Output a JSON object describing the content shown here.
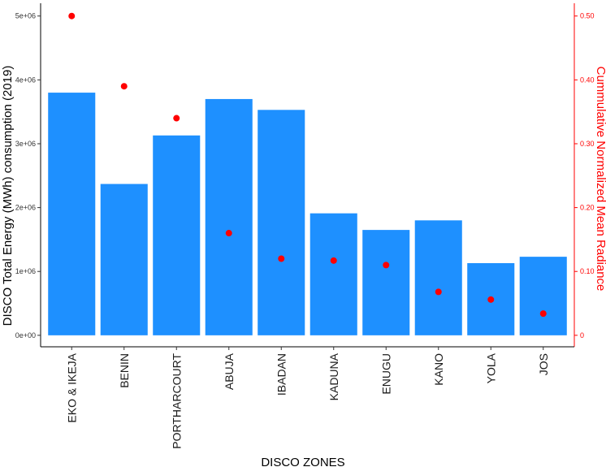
{
  "chart_data": {
    "type": "bar",
    "categories": [
      "EKO & IKEJA",
      "BENIN",
      "PORTHARCOURT",
      "ABUJA",
      "IBADAN",
      "KADUNA",
      "ENUGU",
      "KANO",
      "YOLA",
      "JOS"
    ],
    "series": [
      {
        "type": "bar",
        "axis": "left",
        "color": "#1e90ff",
        "values": [
          3800000,
          2370000,
          3130000,
          3700000,
          3530000,
          1910000,
          1650000,
          1800000,
          1130000,
          1230000
        ]
      },
      {
        "type": "scatter",
        "axis": "right",
        "color": "#ff0000",
        "values": [
          0.5,
          0.39,
          0.34,
          0.16,
          0.12,
          0.117,
          0.11,
          0.068,
          0.056,
          0.034
        ]
      }
    ],
    "xlabel": "DISCO ZONES",
    "ylabel": "DISCO Total Energy (MWh) consumption (2019)",
    "y2label": "Cummulative Normalized Mean Radiance",
    "ylim": [
      -180000,
      5200000
    ],
    "y2lim": [
      -0.018,
      0.52
    ],
    "yticks": [
      "0e+00",
      "1e+06",
      "2e+06",
      "3e+06",
      "4e+06",
      "5e+06"
    ],
    "yticks_values": [
      0,
      1000000,
      2000000,
      3000000,
      4000000,
      5000000
    ],
    "y2ticks": [
      "0",
      "0.10",
      "0.20",
      "0.30",
      "0.40",
      "0.50"
    ],
    "y2ticks_values": [
      0,
      0.1,
      0.2,
      0.3,
      0.4,
      0.5
    ],
    "axis_color_right": "#ff0000",
    "grid": false,
    "legend": "none"
  }
}
